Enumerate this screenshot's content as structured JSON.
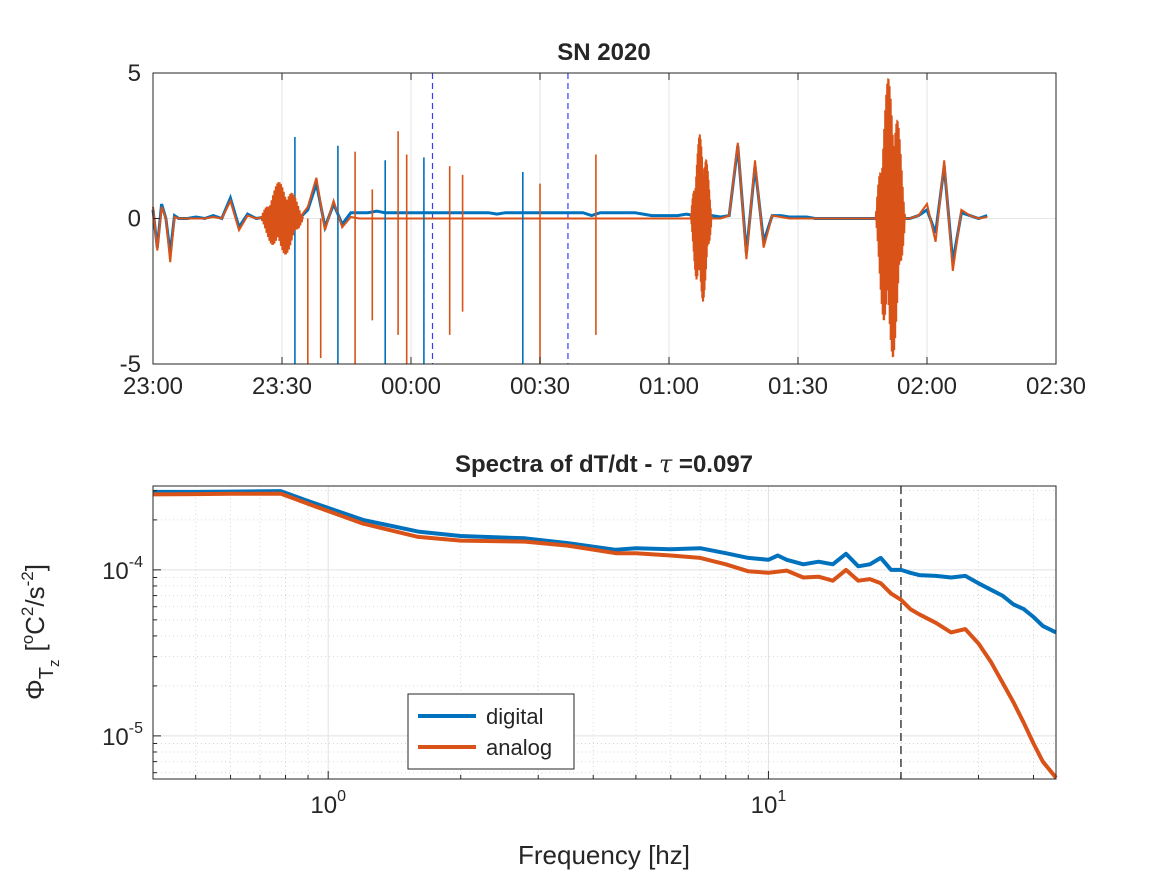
{
  "chart_data": [
    {
      "type": "line",
      "title": "SN 2020",
      "xlabel": "",
      "ylabel": "",
      "x_tick_labels": [
        "23:00",
        "23:30",
        "00:00",
        "00:30",
        "01:00",
        "01:30",
        "02:00",
        "02:30"
      ],
      "y_tick_labels": [
        "5",
        "0",
        "-5"
      ],
      "xlim_minutes": [
        0,
        210
      ],
      "ylim": [
        -5,
        5
      ],
      "grid": true,
      "vertical_markers_minutes": [
        65,
        96.5
      ],
      "series": [
        {
          "color": "#0072BD",
          "x_minutes": [
            0,
            1,
            2,
            3,
            4,
            5,
            6,
            8,
            10,
            12,
            14,
            16,
            18,
            20,
            22,
            24,
            26,
            28,
            30,
            32,
            34,
            36,
            38,
            40,
            42,
            44,
            46,
            48,
            50,
            52,
            54,
            56,
            58,
            60,
            62,
            64,
            66,
            68,
            70,
            72,
            74,
            76,
            78,
            80,
            82,
            84,
            86,
            88,
            90,
            92,
            94,
            96,
            98,
            100,
            102,
            104,
            106,
            108,
            110,
            112,
            114,
            116,
            118,
            120,
            122,
            124,
            126,
            128,
            130,
            132,
            134,
            136,
            138,
            140,
            142,
            144,
            146,
            148,
            150,
            152,
            154,
            156,
            158,
            160,
            162,
            164,
            166,
            168,
            170,
            172,
            174,
            176,
            178,
            180,
            182,
            184,
            186,
            188,
            190,
            192,
            194
          ],
          "y": [
            0.3,
            -1.0,
            0.5,
            0.0,
            -1.2,
            0.1,
            0.0,
            0.0,
            0.05,
            0.0,
            0.1,
            0.0,
            0.7,
            -0.3,
            0.15,
            0.0,
            0.05,
            0.0,
            0.0,
            0.0,
            0.0,
            0.3,
            1.2,
            -0.3,
            0.5,
            -0.2,
            0.2,
            0.2,
            0.2,
            0.25,
            0.2,
            0.2,
            0.2,
            0.2,
            0.2,
            0.2,
            0.2,
            0.2,
            0.2,
            0.2,
            0.2,
            0.2,
            0.2,
            0.15,
            0.2,
            0.2,
            0.2,
            0.2,
            0.2,
            0.2,
            0.2,
            0.2,
            0.2,
            0.2,
            0.1,
            0.2,
            0.2,
            0.2,
            0.2,
            0.2,
            0.15,
            0.1,
            0.1,
            0.1,
            0.1,
            0.15,
            0.1,
            0.1,
            0.1,
            0.05,
            0.1,
            2.5,
            -1.2,
            1.8,
            -0.8,
            0.1,
            0.1,
            0.05,
            0.05,
            0.05,
            0.0,
            0.0,
            0.0,
            0.0,
            0.0,
            0.0,
            0.0,
            0.0,
            0.0,
            0.0,
            0.0,
            0.0,
            0.1,
            0.3,
            -0.5,
            1.8,
            -1.5,
            0.2,
            0.1,
            0.0,
            0.1
          ]
        },
        {
          "color": "#D95319",
          "x_minutes": [
            0,
            1,
            2,
            3,
            4,
            5,
            6,
            8,
            10,
            12,
            14,
            16,
            18,
            20,
            22,
            24,
            26,
            28,
            30,
            32,
            34,
            36,
            38,
            40,
            42,
            44,
            46,
            48,
            50,
            52,
            54,
            56,
            58,
            60,
            62,
            64,
            66,
            68,
            70,
            72,
            74,
            76,
            78,
            80,
            82,
            84,
            86,
            88,
            90,
            92,
            94,
            96,
            98,
            100,
            102,
            104,
            106,
            108,
            110,
            112,
            114,
            116,
            118,
            120,
            122,
            124,
            126,
            128,
            130,
            132,
            134,
            136,
            138,
            140,
            142,
            144,
            146,
            148,
            150,
            152,
            154,
            156,
            158,
            160,
            162,
            164,
            166,
            168,
            170,
            172,
            174,
            176,
            178,
            180,
            182,
            184,
            186,
            188,
            190,
            192,
            194
          ],
          "y": [
            0.4,
            -1.1,
            0.4,
            0.0,
            -1.5,
            0.05,
            0.0,
            0.0,
            0.0,
            0.0,
            0.05,
            0.0,
            0.6,
            -0.4,
            0.1,
            0.0,
            0.05,
            0.0,
            0.0,
            0.0,
            0.0,
            0.4,
            1.4,
            -0.4,
            0.6,
            -0.3,
            0.05,
            0.0,
            0.0,
            0.0,
            0.0,
            0.0,
            0.0,
            0.0,
            0.0,
            0.0,
            0.0,
            0.0,
            0.0,
            0.0,
            0.0,
            0.0,
            0.0,
            0.0,
            0.0,
            0.0,
            0.0,
            0.0,
            0.0,
            0.0,
            0.0,
            0.0,
            0.0,
            0.0,
            0.0,
            0.0,
            0.0,
            0.0,
            0.0,
            0.0,
            0.0,
            0.0,
            0.0,
            0.0,
            0.0,
            0.0,
            0.0,
            0.0,
            0.0,
            0.0,
            0.1,
            2.6,
            -1.4,
            2.0,
            -1.0,
            0.1,
            0.05,
            0.0,
            0.0,
            0.0,
            0.0,
            0.0,
            0.0,
            0.0,
            0.0,
            0.0,
            0.0,
            0.0,
            0.0,
            0.0,
            0.0,
            0.0,
            0.1,
            0.5,
            -0.8,
            2.0,
            -1.8,
            0.3,
            0.1,
            0.0,
            0.05
          ]
        }
      ],
      "spikes_minutes": [
        {
          "x": 33,
          "lo": -5,
          "hi": 2.8
        },
        {
          "x": 36,
          "lo": -5,
          "hi": 0.0
        },
        {
          "x": 39,
          "lo": -4.8,
          "hi": 0.0
        },
        {
          "x": 43,
          "lo": -5,
          "hi": 2.5
        },
        {
          "x": 47,
          "lo": -5,
          "hi": 2.3
        },
        {
          "x": 51,
          "lo": -3.5,
          "hi": 1.0
        },
        {
          "x": 54,
          "lo": -5,
          "hi": 2.0
        },
        {
          "x": 57,
          "lo": -4,
          "hi": 3.0
        },
        {
          "x": 59,
          "lo": -5,
          "hi": 2.2
        },
        {
          "x": 63,
          "lo": -5,
          "hi": 2.1
        },
        {
          "x": 69,
          "lo": -4,
          "hi": 1.8
        },
        {
          "x": 72,
          "lo": -3.2,
          "hi": 1.5
        },
        {
          "x": 86,
          "lo": -5,
          "hi": 1.6
        },
        {
          "x": 90,
          "lo": -5,
          "hi": 1.2
        },
        {
          "x": 103,
          "lo": -4,
          "hi": 2.2
        }
      ],
      "bursts_minutes": [
        {
          "x0": 25,
          "x1": 35,
          "amp": 1.3
        },
        {
          "x0": 125,
          "x1": 130,
          "amp": 3.0
        },
        {
          "x0": 168,
          "x1": 175,
          "amp": 5.0
        }
      ]
    },
    {
      "type": "line",
      "title": "Spectra of dT/dt - τ =0.097",
      "title_main": "Spectra of dT/dt - ",
      "title_tau": "τ",
      "title_tail": " =0.097",
      "xlabel": "Frequency [hz]",
      "ylabel_base": "Φ",
      "ylabel_sub": "T",
      "ylabel_subsub": "z",
      "ylabel_units_open": "[",
      "ylabel_units_o": "o",
      "ylabel_units_c": "C",
      "ylabel_units_sq": "2",
      "ylabel_units_mid": "/s",
      "ylabel_units_exp": "-2",
      "ylabel_units_close": "]",
      "x_scale": "log",
      "y_scale": "log",
      "xlim": [
        0.4,
        45
      ],
      "ylim": [
        5.5e-06,
        0.00032
      ],
      "x_tick_labels": [
        {
          "base": "10",
          "exp": "0",
          "value": 1
        },
        {
          "base": "10",
          "exp": "1",
          "value": 10
        }
      ],
      "y_tick_labels": [
        {
          "base": "10",
          "exp": "-4",
          "value": 0.0001
        },
        {
          "base": "10",
          "exp": "-5",
          "value": 1e-05
        }
      ],
      "vertical_marker": 20,
      "grid": true,
      "legend_position": "bottom-center-left",
      "series": [
        {
          "name": "digital",
          "color": "#0072BD",
          "x": [
            0.4,
            0.5,
            0.6,
            0.78,
            0.9,
            1.2,
            1.6,
            2.0,
            2.8,
            3.5,
            4.5,
            5.0,
            6.0,
            7.0,
            8.0,
            9.0,
            10.0,
            10.5,
            11.0,
            12.0,
            13.0,
            14.0,
            15.0,
            16.0,
            17.0,
            18.0,
            19.0,
            20.0,
            21.0,
            22.0,
            24.0,
            26.0,
            28.0,
            30.0,
            32.0,
            34.0,
            36.0,
            38.0,
            40.0,
            42.0,
            45.0
          ],
          "y": [
            0.000295,
            0.000295,
            0.000296,
            0.000298,
            0.00026,
            0.0002,
            0.00017,
            0.00016,
            0.000155,
            0.000145,
            0.000132,
            0.000135,
            0.000133,
            0.000135,
            0.000126,
            0.000118,
            0.000115,
            0.000122,
            0.000115,
            0.000108,
            0.000112,
            0.000108,
            0.000125,
            0.000105,
            0.000108,
            0.000118,
            0.0001,
            0.0001,
            9.6e-05,
            9.3e-05,
            9.2e-05,
            9e-05,
            9.2e-05,
            8.3e-05,
            7.6e-05,
            7e-05,
            6.2e-05,
            5.8e-05,
            5.2e-05,
            4.6e-05,
            4.2e-05
          ]
        },
        {
          "name": "analog",
          "color": "#D95319",
          "x": [
            0.4,
            0.5,
            0.6,
            0.78,
            0.9,
            1.2,
            1.6,
            2.0,
            2.8,
            3.5,
            4.5,
            5.0,
            6.0,
            7.0,
            8.0,
            9.0,
            10.0,
            11.0,
            12.0,
            13.0,
            14.0,
            15.0,
            16.0,
            17.0,
            18.0,
            19.0,
            20.0,
            21.0,
            22.0,
            24.0,
            26.0,
            28.0,
            30.0,
            32.0,
            34.0,
            36.0,
            38.0,
            40.0,
            42.0,
            45.0
          ],
          "y": [
            0.000285,
            0.000286,
            0.000287,
            0.000288,
            0.00025,
            0.00019,
            0.000158,
            0.00015,
            0.000148,
            0.00014,
            0.000126,
            0.000126,
            0.000122,
            0.000118,
            0.000108,
            9.8e-05,
            9.6e-05,
            9.9e-05,
            9e-05,
            9.1e-05,
            8.6e-05,
            0.0001,
            8.6e-05,
            8.8e-05,
            8.3e-05,
            7.2e-05,
            6.6e-05,
            5.8e-05,
            5.4e-05,
            4.8e-05,
            4.2e-05,
            4.4e-05,
            3.6e-05,
            2.8e-05,
            2.1e-05,
            1.6e-05,
            1.2e-05,
            9e-06,
            7e-06,
            5.6e-06
          ]
        }
      ]
    }
  ]
}
